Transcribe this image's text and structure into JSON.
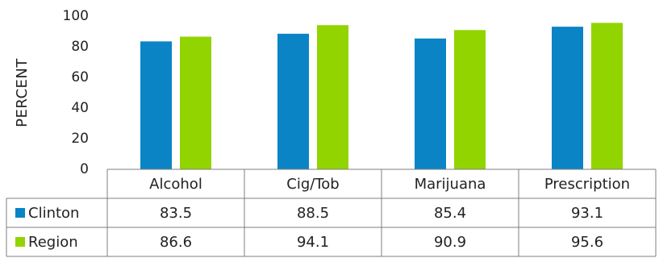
{
  "chart_data": {
    "type": "bar",
    "ylabel": "PERCENT",
    "ylim": [
      0,
      100
    ],
    "yticks": [
      0,
      20,
      40,
      60,
      80,
      100
    ],
    "grid": false,
    "legend": "data-table",
    "categories": [
      "Alcohol",
      "Cig/Tob",
      "Marijuana",
      "Prescription"
    ],
    "series": [
      {
        "name": "Clinton",
        "color": "#0B84C6",
        "values": [
          83.5,
          88.5,
          85.4,
          93.1
        ],
        "labels": [
          "83.5",
          "88.5",
          "85.4",
          "93.1"
        ]
      },
      {
        "name": "Region",
        "color": "#92D400",
        "values": [
          86.6,
          94.1,
          90.9,
          95.6
        ],
        "labels": [
          "86.6",
          "94.1",
          "90.9",
          "95.6"
        ]
      }
    ]
  }
}
